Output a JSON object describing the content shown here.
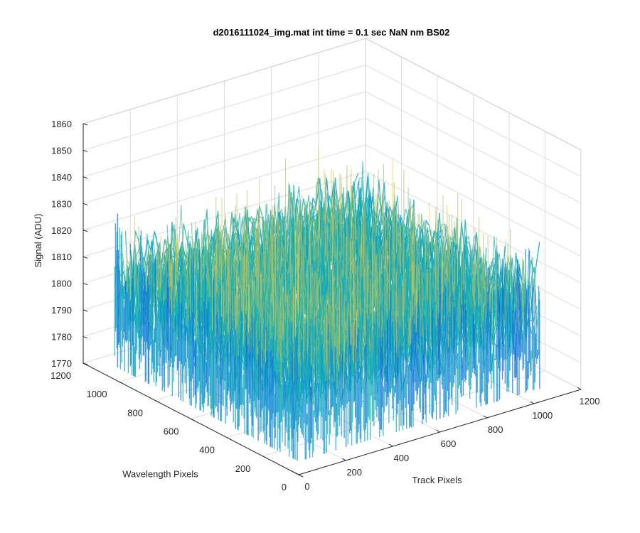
{
  "window": {
    "background": "#ffffff"
  },
  "chart_data": {
    "type": "surface",
    "title": "d2016111024_img.mat int time = 0.1 sec  NaN nm BS02",
    "xlabel": "Track Pixels",
    "ylabel": "Wavelength Pixels",
    "zlabel": "Signal (ADU)",
    "xlim": [
      0,
      1200
    ],
    "ylim": [
      0,
      1200
    ],
    "zlim": [
      1770,
      1860
    ],
    "xticks": [
      0,
      200,
      400,
      600,
      800,
      1000,
      1200
    ],
    "yticks": [
      0,
      200,
      400,
      600,
      800,
      1000,
      1200
    ],
    "zticks": [
      1770,
      1780,
      1790,
      1800,
      1810,
      1820,
      1830,
      1840,
      1850,
      1860
    ],
    "grid": true,
    "colormap": "parula",
    "colors": {
      "low": "#0b7ee0",
      "mid": "#1fb0c4",
      "high": "#dcc63a",
      "axes": "#262626",
      "grid": "#dcdcdc"
    },
    "surface": {
      "x_extent": [
        0,
        1024
      ],
      "y_extent": [
        0,
        1024
      ],
      "mean_signal": 1806,
      "signal_range_typical": [
        1785,
        1835
      ],
      "signal_peaks_max": 1845,
      "signal_dips_min": 1775,
      "noise": "high-frequency pixel noise"
    }
  }
}
